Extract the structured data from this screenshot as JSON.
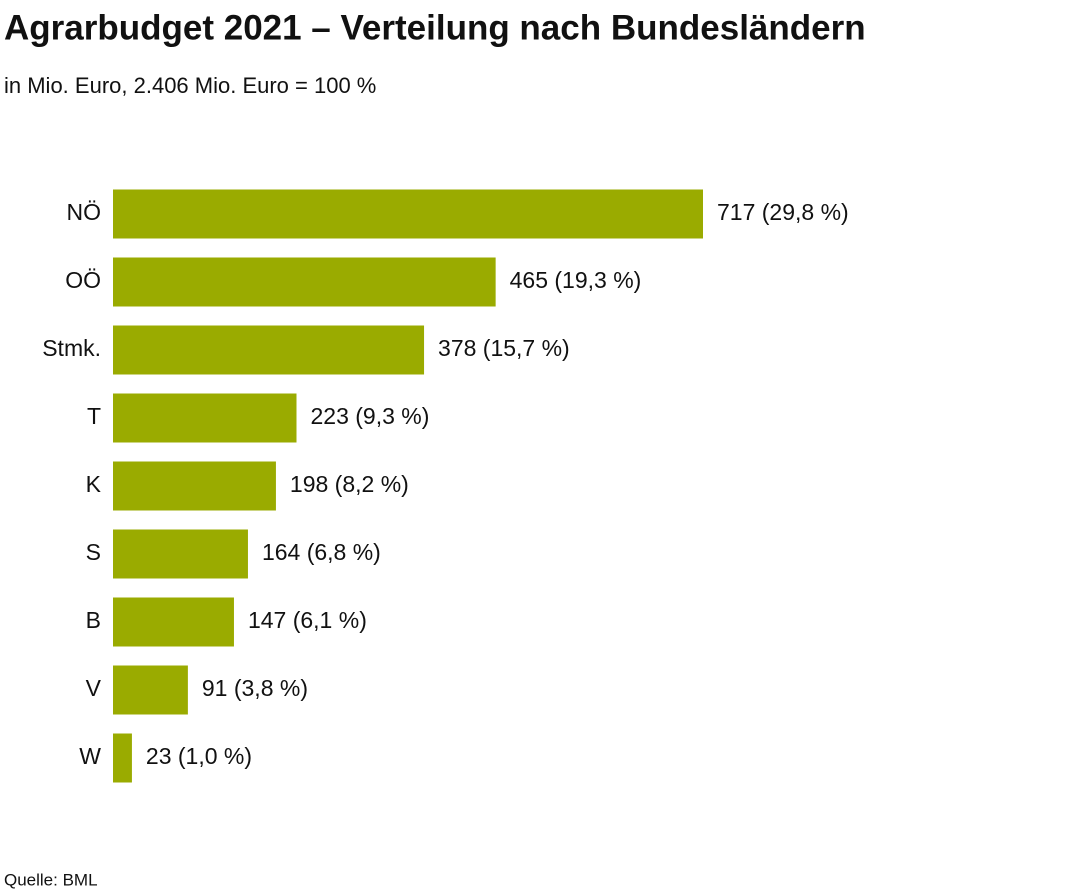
{
  "chart_data": {
    "type": "bar",
    "orientation": "horizontal",
    "title": "Agrarbudget 2021 – Verteilung nach Bundesländern",
    "subtitle": "in Mio. Euro, 2.406 Mio. Euro = 100 %",
    "source": "Quelle: BML",
    "categories": [
      "NÖ",
      "OÖ",
      "Stmk.",
      "T",
      "K",
      "S",
      "B",
      "V",
      "W"
    ],
    "values": [
      717,
      465,
      378,
      223,
      198,
      164,
      147,
      91,
      23
    ],
    "value_labels": [
      "717 (29,8 %)",
      "465 (19,3 %)",
      "378 (15,7 %)",
      "223 (9,3 %)",
      "198 (8,2 %)",
      "164 (6,8 %)",
      "147 (6,1 %)",
      "91 (3,8 %)",
      "23 (1,0 %)"
    ],
    "color": "#9aab00"
  }
}
